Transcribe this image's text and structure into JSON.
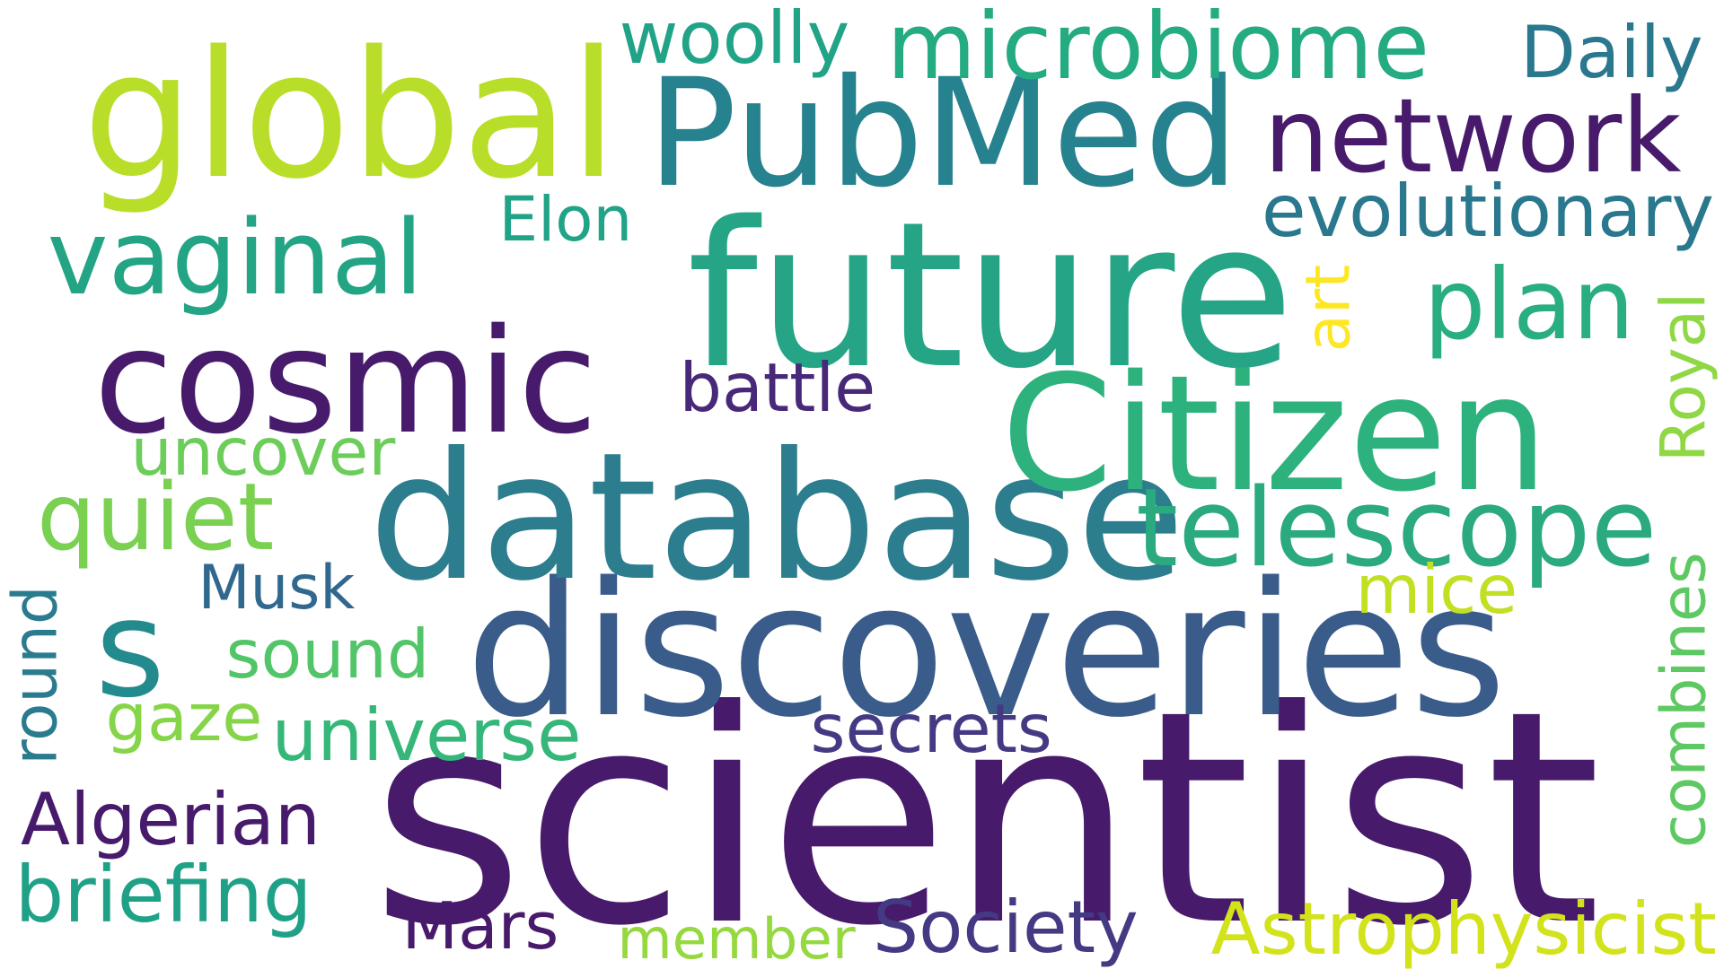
{
  "words": [
    {
      "id": "scientist",
      "text": "scientist",
      "color": "#471a6b",
      "vertical": false
    },
    {
      "id": "discoveries",
      "text": "discoveries",
      "color": "#3a5c8a",
      "vertical": false
    },
    {
      "id": "database",
      "text": "database",
      "color": "#2c7d8e",
      "vertical": false
    },
    {
      "id": "future",
      "text": "future",
      "color": "#25a585",
      "vertical": false
    },
    {
      "id": "citizen",
      "text": "Citizen",
      "color": "#2db27d",
      "vertical": false
    },
    {
      "id": "pubmed",
      "text": "PubMed",
      "color": "#26828e",
      "vertical": false
    },
    {
      "id": "global",
      "text": "global",
      "color": "#b8de29",
      "vertical": false
    },
    {
      "id": "cosmic",
      "text": "cosmic",
      "color": "#471a6b",
      "vertical": false
    },
    {
      "id": "s",
      "text": "s",
      "color": "#238a8d",
      "vertical": false
    },
    {
      "id": "telescope",
      "text": "telescope",
      "color": "#2ba97f",
      "vertical": false
    },
    {
      "id": "network",
      "text": "network",
      "color": "#471a6b",
      "vertical": false
    },
    {
      "id": "microbiome",
      "text": "microbiome",
      "color": "#25ab82",
      "vertical": false
    },
    {
      "id": "vaginal",
      "text": "vaginal",
      "color": "#23a484",
      "vertical": false
    },
    {
      "id": "plan",
      "text": "plan",
      "color": "#28ae80",
      "vertical": false
    },
    {
      "id": "evolutionary",
      "text": "evolutionary",
      "color": "#2a788e",
      "vertical": false
    },
    {
      "id": "astrophysicist",
      "text": "Astrophysicist",
      "color": "#d2e21b",
      "vertical": false
    },
    {
      "id": "quiet",
      "text": "quiet",
      "color": "#7ad151",
      "vertical": false
    },
    {
      "id": "battle",
      "text": "battle",
      "color": "#482878",
      "vertical": false
    },
    {
      "id": "uncover",
      "text": "uncover",
      "color": "#6ccd5a",
      "vertical": false
    },
    {
      "id": "universe",
      "text": "universe",
      "color": "#35b779",
      "vertical": false
    },
    {
      "id": "sound",
      "text": "sound",
      "color": "#52c569",
      "vertical": false
    },
    {
      "id": "society",
      "text": "Society",
      "color": "#443a83",
      "vertical": false
    },
    {
      "id": "secrets",
      "text": "secrets",
      "color": "#443a83",
      "vertical": false
    },
    {
      "id": "algerian",
      "text": "Algerian",
      "color": "#471a6b",
      "vertical": false
    },
    {
      "id": "briefing",
      "text": "briefing",
      "color": "#1fa187",
      "vertical": false
    },
    {
      "id": "mars",
      "text": "Mars",
      "color": "#471a6b",
      "vertical": false
    },
    {
      "id": "member",
      "text": "member",
      "color": "#95d840",
      "vertical": false
    },
    {
      "id": "musk",
      "text": "Musk",
      "color": "#31688e",
      "vertical": false
    },
    {
      "id": "elon",
      "text": "Elon",
      "color": "#20a386",
      "vertical": false
    },
    {
      "id": "woolly",
      "text": "woolly",
      "color": "#20a386",
      "vertical": false
    },
    {
      "id": "daily",
      "text": "Daily",
      "color": "#2a788e",
      "vertical": false
    },
    {
      "id": "mice",
      "text": "mice",
      "color": "#c2df23",
      "vertical": false
    },
    {
      "id": "gaze",
      "text": "gaze",
      "color": "#86d549",
      "vertical": false
    },
    {
      "id": "art",
      "text": "art",
      "color": "#fde725",
      "vertical": true
    },
    {
      "id": "royal",
      "text": "Royal",
      "color": "#8fd744",
      "vertical": true
    },
    {
      "id": "combines",
      "text": "combines",
      "color": "#5ec962",
      "vertical": true
    },
    {
      "id": "round",
      "text": "round",
      "color": "#2a7b8e",
      "vertical": true
    }
  ]
}
